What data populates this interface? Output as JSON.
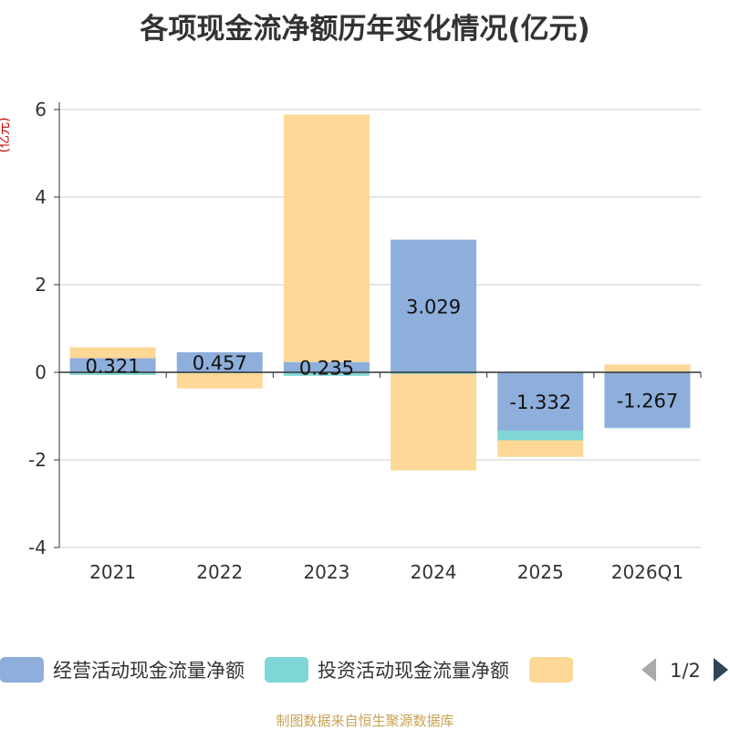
{
  "title": "各项现金流净额历年变化情况(亿元)",
  "unit_label": "(亿元)",
  "source": "制图数据来自恒生聚源数据库",
  "legend_page": "1/2",
  "colors": {
    "operating": "#8eaedb",
    "investing": "#7fd6d6",
    "financing": "#fdd897",
    "axis": "#333333",
    "grid": "#cccccc",
    "unit": "#cc0000",
    "pager_active": "#2f4554",
    "pager_inactive": "#aaaaaa"
  },
  "chart_data": {
    "type": "bar",
    "stacked": true,
    "title": "各项现金流净额历年变化情况(亿元)",
    "ylabel": "(亿元)",
    "ylim": [
      -4,
      6
    ],
    "yticks": [
      -4,
      -2,
      0,
      2,
      4,
      6
    ],
    "grid": true,
    "legend_position": "bottom",
    "categories": [
      "2021",
      "2022",
      "2023",
      "2024",
      "2025",
      "2026Q1"
    ],
    "series": [
      {
        "name": "经营活动现金流量净额",
        "key": "operating",
        "values": [
          0.321,
          0.457,
          0.235,
          3.029,
          -1.332,
          -1.267
        ],
        "labels": [
          "0.321",
          "0.457",
          "0.235",
          "3.029",
          "-1.332",
          "-1.267"
        ]
      },
      {
        "name": "投资活动现金流量净额",
        "key": "investing",
        "values": [
          -0.06,
          -0.02,
          -0.08,
          -0.04,
          -0.22,
          -0.01
        ]
      },
      {
        "name": "",
        "key": "financing",
        "values": [
          0.25,
          -0.35,
          5.65,
          -2.2,
          -0.38,
          0.18
        ]
      }
    ]
  }
}
